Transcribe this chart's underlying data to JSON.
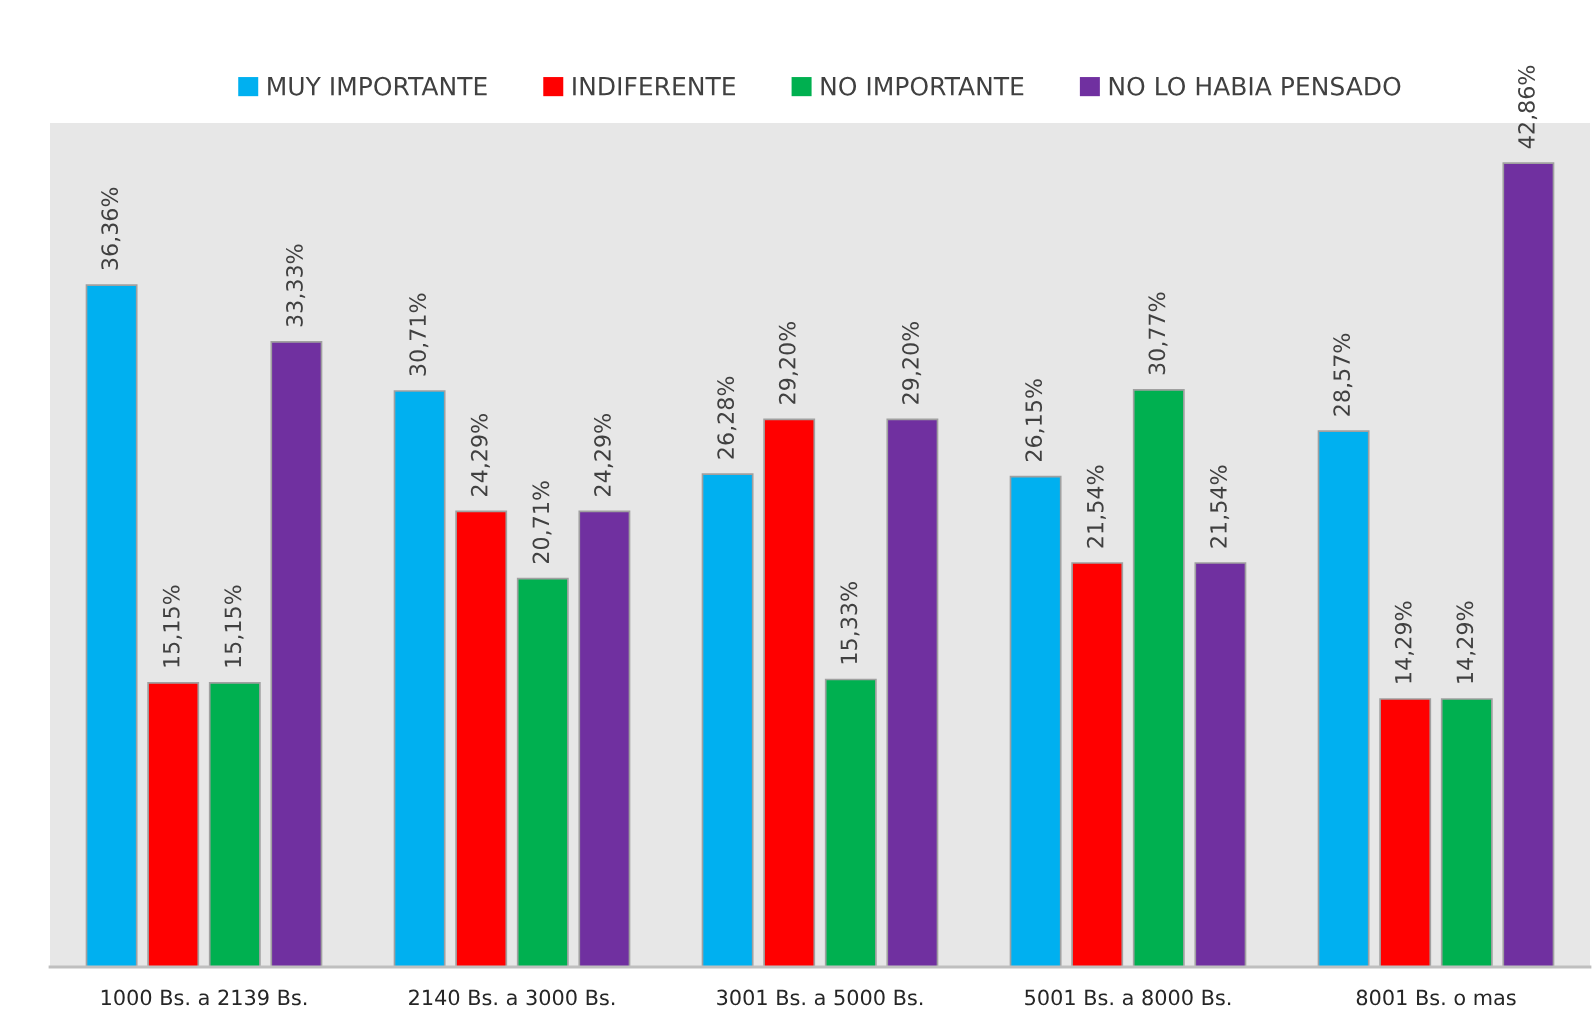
{
  "chart_data": {
    "type": "bar",
    "categories": [
      "1000 Bs. a 2139 Bs.",
      "2140 Bs. a 3000 Bs.",
      "3001 Bs. a 5000 Bs.",
      "5001 Bs. a 8000 Bs.",
      "8001 Bs. o mas"
    ],
    "series": [
      {
        "name": "MUY IMPORTANTE",
        "color": "#00b0f0",
        "values": [
          36.36,
          30.71,
          26.28,
          26.15,
          28.57
        ],
        "value_labels": [
          "36,36%",
          "30,71%",
          "26,28%",
          "26,15%",
          "28,57%"
        ]
      },
      {
        "name": "INDIFERENTE",
        "color": "#ff0000",
        "values": [
          15.15,
          24.29,
          29.2,
          21.54,
          14.29
        ],
        "value_labels": [
          "15,15%",
          "24,29%",
          "29,20%",
          "21,54%",
          "14,29%"
        ]
      },
      {
        "name": "NO IMPORTANTE",
        "color": "#00b050",
        "values": [
          15.15,
          20.71,
          15.33,
          30.77,
          14.29
        ],
        "value_labels": [
          "15,15%",
          "20,71%",
          "15,33%",
          "30,77%",
          "14,29%"
        ]
      },
      {
        "name": "NO LO HABIA PENSADO",
        "color": "#7030a0",
        "values": [
          33.33,
          24.29,
          29.2,
          21.54,
          42.86
        ],
        "value_labels": [
          "33,33%",
          "24,29%",
          "29,20%",
          "21,54%",
          "42,86%"
        ]
      }
    ],
    "ylim": [
      0,
      45
    ],
    "tick_labels": "x",
    "legend": "top"
  }
}
